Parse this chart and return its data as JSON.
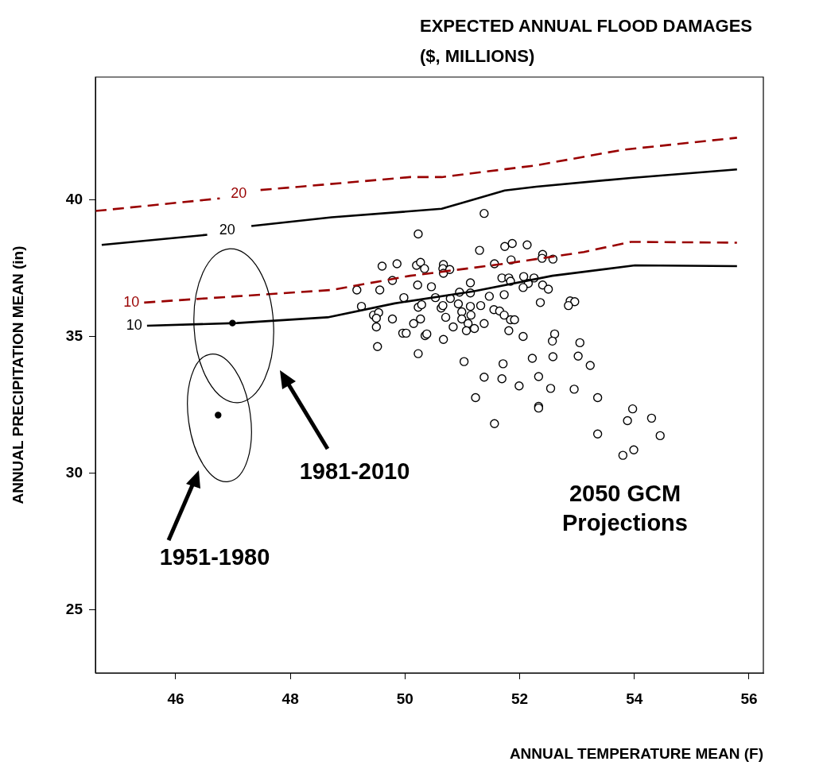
{
  "chart_data": {
    "type": "scatter",
    "title": "EXPECTED ANNUAL FLOOD DAMAGES\n($, MILLIONS)",
    "xlabel": "ANNUAL TEMPERATURE MEAN (F)",
    "ylabel": "ANNUAL PRECIPITATION MEAN (in)",
    "xlim": [
      44.6,
      56.25
    ],
    "ylim": [
      22.7,
      44.5
    ],
    "xticks": [
      46,
      48,
      50,
      52,
      54,
      56
    ],
    "yticks": [
      25,
      30,
      35,
      40
    ],
    "grid": false,
    "legend": false,
    "series": [
      {
        "type": "line",
        "name": "20",
        "color": "#000000",
        "line_style": "solid",
        "marker": "none",
        "x": [
          44.71,
          46.55,
          46.9,
          47.32,
          48.72,
          50.64,
          51.74,
          52.29,
          53.94,
          55.79
        ],
        "values": [
          38.36,
          38.73,
          null,
          39.05,
          39.37,
          39.68,
          40.35,
          40.49,
          40.81,
          41.12
        ]
      },
      {
        "type": "line",
        "name": "20",
        "color": "#990000",
        "line_style": "dashed",
        "marker": "none",
        "x": [
          44.6,
          46.77,
          47.1,
          47.48,
          48.17,
          50.09,
          50.64,
          52.29,
          53.8,
          55.79
        ],
        "values": [
          39.6,
          40.06,
          null,
          40.37,
          40.49,
          40.84,
          40.84,
          41.27,
          41.84,
          42.28
        ]
      },
      {
        "type": "line",
        "name": "10",
        "color": "#000000",
        "line_style": "solid",
        "marker": "none",
        "x": [
          45.5,
          47.07,
          48.65,
          49.82,
          51.19,
          52.57,
          54.01,
          55.79
        ],
        "values": [
          35.4,
          35.5,
          35.71,
          36.22,
          36.66,
          37.23,
          37.61,
          37.58
        ]
      },
      {
        "type": "line",
        "name": "10",
        "color": "#990000",
        "line_style": "dashed",
        "marker": "none",
        "x": [
          45.45,
          47.07,
          48.72,
          50.09,
          51.74,
          53.12,
          53.94,
          55.79
        ],
        "values": [
          36.25,
          36.48,
          36.71,
          37.23,
          37.67,
          38.1,
          38.47,
          38.44
        ]
      },
      {
        "type": "scatter",
        "color": "#000000",
        "marker": "circle",
        "x": [
          46.74,
          46.99
        ],
        "values": [
          32.13,
          35.5
        ]
      },
      {
        "type": "scatter",
        "color": "#000000",
        "marker": "circle",
        "x": [
          51.38,
          50.23,
          51.3,
          51.74,
          51.87,
          52.13,
          51.85,
          52.4,
          52.39,
          49.6,
          49.86,
          50.2,
          50.27,
          50.34,
          50.67,
          50.66,
          50.67,
          50.78,
          51.56,
          49.78,
          49.16,
          49.56,
          50.22,
          50.46,
          51.14,
          51.69,
          51.81,
          51.84,
          52.07,
          52.25,
          52.15,
          52.06,
          52.4,
          49.98,
          50.53,
          50.79,
          50.95,
          51.14,
          51.47,
          51.73,
          52.36,
          49.24,
          50.23,
          50.29,
          50.63,
          50.66,
          50.93,
          51.14,
          51.32,
          49.45,
          49.54,
          49.5,
          51.55,
          51.65,
          51.73,
          51.84,
          51.91,
          50.99,
          51.15,
          50.99,
          49.78,
          50.27,
          50.71,
          50.15,
          51.1,
          49.5,
          50.84,
          51.38,
          51.21,
          51.07,
          49.96,
          50.02,
          50.35,
          50.38,
          50.67,
          51.81,
          52.06,
          49.52,
          50.23,
          51.03,
          51.71,
          52.22,
          52.33,
          51.38,
          51.69,
          51.99,
          51.23,
          52.33,
          52.33,
          51.56,
          52.58,
          52.5,
          52.88,
          52.96,
          52.85,
          52.61,
          52.57,
          53.05,
          52.58,
          53.02,
          53.23,
          52.54,
          52.95,
          53.36,
          53.97,
          53.88,
          54.3,
          53.36,
          54.45,
          53.99,
          53.8
        ],
        "values": [
          39.51,
          38.76,
          38.16,
          38.3,
          38.41,
          38.36,
          37.81,
          38.01,
          37.87,
          37.58,
          37.67,
          37.61,
          37.72,
          37.49,
          37.64,
          37.49,
          37.32,
          37.46,
          37.67,
          37.06,
          36.71,
          36.71,
          36.89,
          36.83,
          36.97,
          37.15,
          37.15,
          37.03,
          37.2,
          37.15,
          36.95,
          36.8,
          36.89,
          36.43,
          36.43,
          36.4,
          36.63,
          36.6,
          36.48,
          36.54,
          36.25,
          36.11,
          36.08,
          36.17,
          36.05,
          36.14,
          36.2,
          36.11,
          36.14,
          35.79,
          35.88,
          35.68,
          35.99,
          35.94,
          35.79,
          35.62,
          35.62,
          35.91,
          35.79,
          35.65,
          35.65,
          35.65,
          35.71,
          35.48,
          35.48,
          35.36,
          35.36,
          35.48,
          35.3,
          35.22,
          35.13,
          35.13,
          35.04,
          35.1,
          34.9,
          35.22,
          35.01,
          34.64,
          34.38,
          34.09,
          34.01,
          34.21,
          33.54,
          33.52,
          33.46,
          33.2,
          32.77,
          32.45,
          32.39,
          31.82,
          37.84,
          36.74,
          36.31,
          36.28,
          36.14,
          35.1,
          34.84,
          34.78,
          34.27,
          34.29,
          33.95,
          33.11,
          33.08,
          32.77,
          32.36,
          31.93,
          32.02,
          31.44,
          31.38,
          30.86,
          30.66
        ]
      }
    ],
    "annotations": [
      "1951-1980",
      "1981-2010",
      "2050 GCM\nProjections"
    ]
  }
}
